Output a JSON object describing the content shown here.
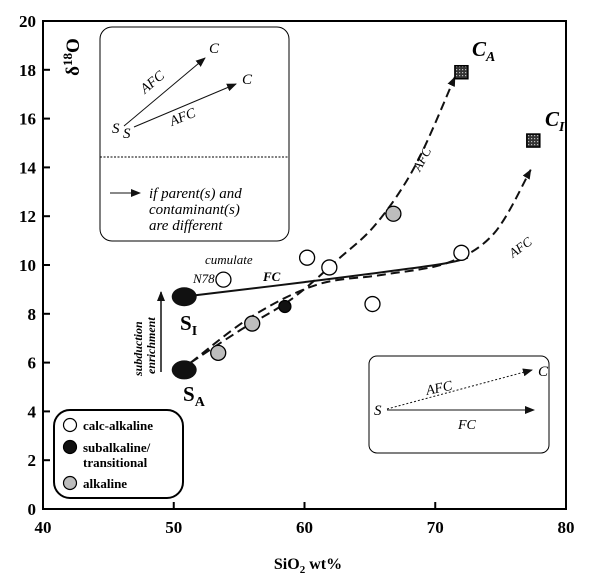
{
  "chart_data": {
    "type": "scatter",
    "xlabel": "SiO₂ wt%",
    "ylabel": "δ¹⁸O",
    "xlim": [
      40,
      80
    ],
    "ylim": [
      0,
      20
    ],
    "x_ticks": [
      "40",
      "50",
      "60",
      "70",
      "80"
    ],
    "y_ticks": [
      "0",
      "2",
      "4",
      "6",
      "8",
      "10",
      "12",
      "14",
      "16",
      "18",
      "20"
    ],
    "grid": false,
    "series": [
      {
        "name": "calc-alkaline",
        "marker": "open-circle",
        "points": [
          [
            53.8,
            9.4
          ],
          [
            60.2,
            10.3
          ],
          [
            61.9,
            9.9
          ],
          [
            65.2,
            8.4
          ],
          [
            72.0,
            10.5
          ]
        ]
      },
      {
        "name": "subalkaline/ transitional",
        "marker": "filled-circle",
        "points": [
          [
            58.5,
            8.3
          ]
        ]
      },
      {
        "name": "alkaline",
        "marker": "grey-circle",
        "points": [
          [
            53.4,
            6.4
          ],
          [
            56.0,
            7.6
          ],
          [
            66.8,
            12.1
          ]
        ]
      }
    ],
    "end_members": [
      {
        "label": "S",
        "sub": "I",
        "x": 50.8,
        "y": 8.7,
        "marker": "filled-ellipse"
      },
      {
        "label": "S",
        "sub": "A",
        "x": 50.8,
        "y": 5.7,
        "marker": "filled-ellipse"
      },
      {
        "label": "C",
        "sub": "A",
        "x": 72.0,
        "y": 17.9,
        "marker": "hatched-square"
      },
      {
        "label": "C",
        "sub": "I",
        "x": 77.5,
        "y": 15.1,
        "marker": "hatched-square"
      }
    ],
    "curves": [
      {
        "label": "AFC",
        "style": "dashed",
        "arrow": true,
        "points": [
          [
            51.3,
            6.0
          ],
          [
            55.0,
            7.3
          ],
          [
            59.0,
            8.6
          ],
          [
            62.5,
            10.2
          ],
          [
            65.5,
            11.7
          ],
          [
            68.5,
            14.1
          ],
          [
            71.5,
            17.7
          ]
        ]
      },
      {
        "label": "AFC",
        "style": "dashed",
        "arrow": true,
        "points": [
          [
            51.3,
            6.0
          ],
          [
            56.0,
            7.9
          ],
          [
            61.0,
            9.2
          ],
          [
            66.0,
            9.6
          ],
          [
            71.0,
            10.1
          ],
          [
            74.5,
            11.3
          ],
          [
            77.3,
            13.9
          ]
        ]
      },
      {
        "label": "FC",
        "style": "solid",
        "arrow": false,
        "points": [
          [
            51.5,
            8.75
          ],
          [
            60.0,
            9.3
          ],
          [
            70.0,
            10.0
          ],
          [
            72.5,
            10.3
          ]
        ]
      }
    ],
    "annotations": {
      "cumulate": "cumulate",
      "n78": "N78",
      "fc": "FC",
      "afc_upper": "AFC",
      "afc_lower": "AFC",
      "enrichment": [
        "subduction",
        "enrichment"
      ]
    },
    "legend": {
      "position": "bottom-left",
      "items": [
        "calc-alkaline",
        "subalkaline/ transitional",
        "alkaline"
      ]
    },
    "inset_top": {
      "position": "top-left",
      "labels": {
        "afc1": "AFC",
        "afc2": "AFC",
        "c1": "C",
        "c2": "C",
        "s1": "S",
        "s2": "S"
      },
      "note": [
        "if parent(s) and",
        "contaminant(s)",
        "are different"
      ]
    },
    "inset_bottom": {
      "position": "bottom-right",
      "labels": {
        "afc": "AFC",
        "fc": "FC",
        "c": "C",
        "s": "S"
      }
    }
  }
}
